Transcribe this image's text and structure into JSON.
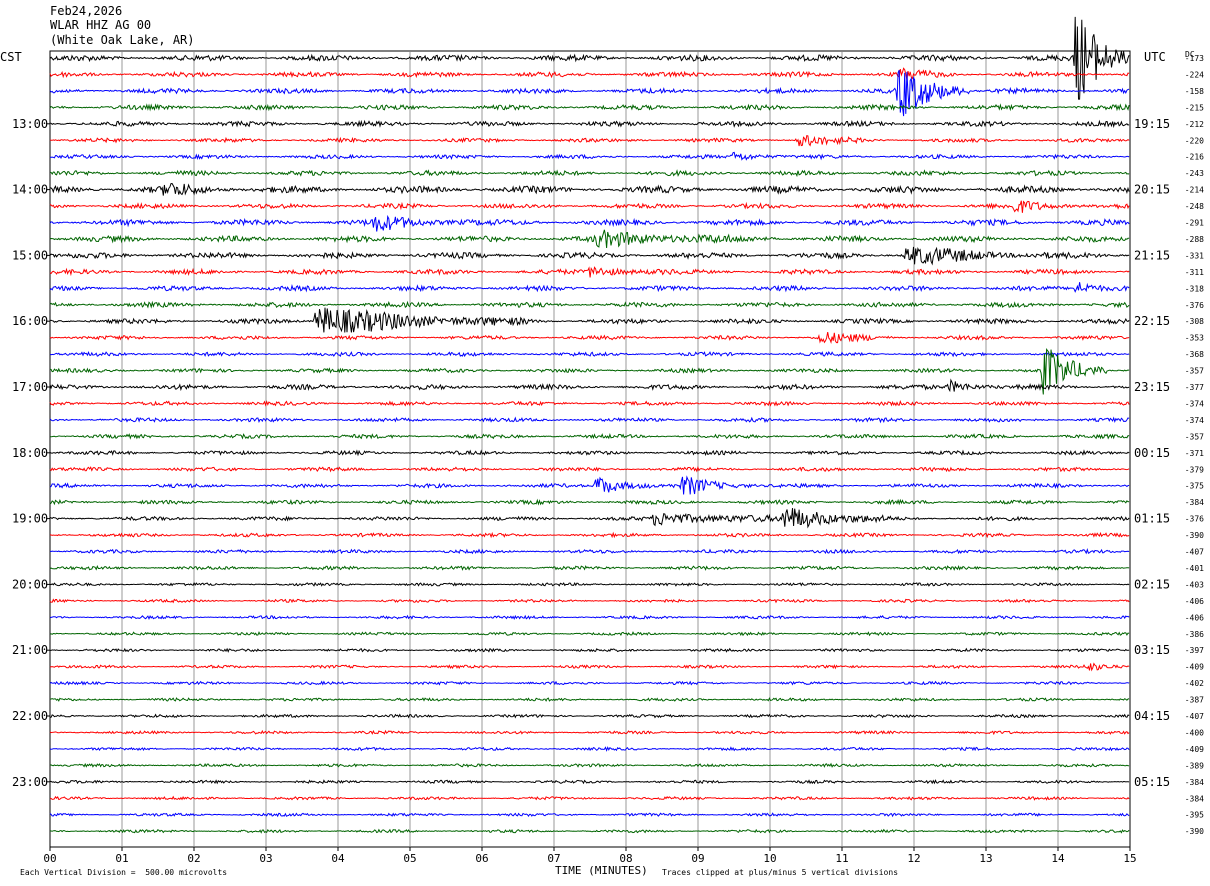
{
  "header": {
    "date": "Feb24,2026",
    "station": "WLAR HHZ AG 00",
    "location": "(White Oak Lake, AR)"
  },
  "left_tz": "CST",
  "right_tz": "UTC",
  "dc_label": "DC",
  "footer": {
    "scale_note": "Each Vertical Division =  500.00 microvolts",
    "xlabel": "TIME (MINUTES)",
    "clip_note": "Traces clipped at plus/minus 5 vertical divisions"
  },
  "colors": {
    "trace_cycle": [
      "#000000",
      "#ff0000",
      "#0000ff",
      "#006400"
    ],
    "grid": "#808080"
  },
  "chart_data": {
    "type": "helicorder",
    "title": "WLAR HHZ AG 00",
    "xlabel": "TIME (MINUTES)",
    "xlim": [
      0,
      15
    ],
    "x_ticks": [
      "00",
      "01",
      "02",
      "03",
      "04",
      "05",
      "06",
      "07",
      "08",
      "09",
      "10",
      "11",
      "12",
      "13",
      "14",
      "15"
    ],
    "minutes_per_line": 15,
    "lines_per_hour": 4,
    "left_time_labels": [
      "13:00",
      "14:00",
      "15:00",
      "16:00",
      "17:00",
      "18:00",
      "19:00",
      "20:00",
      "21:00",
      "22:00",
      "23:00"
    ],
    "right_time_labels": [
      "19:15",
      "20:15",
      "21:15",
      "22:15",
      "23:15",
      "00:15",
      "01:15",
      "02:15",
      "03:15",
      "04:15",
      "05:15"
    ],
    "dc_offsets": [
      -173,
      -224,
      -158,
      -215,
      -212,
      -220,
      -216,
      -243,
      -214,
      -248,
      -291,
      -288,
      -331,
      -311,
      -318,
      -376,
      -308,
      -353,
      -368,
      -357,
      -377,
      -374,
      -374,
      -357,
      -371,
      -379,
      -375,
      -384,
      -376,
      -390,
      -407,
      -401,
      -403,
      -406,
      -406,
      -386,
      -397,
      -409,
      -402,
      -387,
      -407,
      -400,
      -409,
      -389,
      -384,
      -384,
      -395,
      -390
    ],
    "noise_levels": [
      3,
      2.5,
      2.5,
      2.5,
      2.5,
      2,
      2,
      2.5,
      3.5,
      2.5,
      3,
      3,
      3,
      2.5,
      2.5,
      2.5,
      2.5,
      2,
      2,
      2,
      2.5,
      2,
      2,
      2,
      2,
      2,
      2,
      2,
      2,
      1.8,
      1.8,
      1.8,
      1.5,
      1.5,
      1.5,
      1.5,
      1.5,
      1.5,
      1.5,
      1.5,
      1.5,
      1.5,
      1.5,
      1.5,
      1.5,
      1.5,
      1.5,
      1.5
    ],
    "events": [
      {
        "line": 0,
        "minute": 14.25,
        "amplitude": 55,
        "duration": 0.3
      },
      {
        "line": 2,
        "minute": 11.8,
        "amplitude": 28,
        "duration": 0.4
      },
      {
        "line": 1,
        "minute": 11.8,
        "amplitude": 6,
        "duration": 0.3
      },
      {
        "line": 5,
        "minute": 10.4,
        "amplitude": 6,
        "duration": 0.4
      },
      {
        "line": 6,
        "minute": 9.5,
        "amplitude": 5,
        "duration": 0.3
      },
      {
        "line": 8,
        "minute": 1.6,
        "amplitude": 6,
        "duration": 0.4
      },
      {
        "line": 9,
        "minute": 13.4,
        "amplitude": 6,
        "duration": 0.4
      },
      {
        "line": 10,
        "minute": 4.5,
        "amplitude": 7,
        "duration": 0.6
      },
      {
        "line": 11,
        "minute": 7.6,
        "amplitude": 7,
        "duration": 1.0
      },
      {
        "line": 12,
        "minute": 11.9,
        "amplitude": 9,
        "duration": 0.8
      },
      {
        "line": 13,
        "minute": 7.5,
        "amplitude": 5,
        "duration": 0.5
      },
      {
        "line": 14,
        "minute": 14.25,
        "amplitude": 7,
        "duration": 0.3
      },
      {
        "line": 16,
        "minute": 3.7,
        "amplitude": 15,
        "duration": 1.2
      },
      {
        "line": 17,
        "minute": 10.7,
        "amplitude": 6,
        "duration": 0.4
      },
      {
        "line": 19,
        "minute": 13.8,
        "amplitude": 26,
        "duration": 0.35
      },
      {
        "line": 20,
        "minute": 12.5,
        "amplitude": 6,
        "duration": 0.3
      },
      {
        "line": 26,
        "minute": 7.6,
        "amplitude": 11,
        "duration": 0.3
      },
      {
        "line": 26,
        "minute": 8.8,
        "amplitude": 10,
        "duration": 0.4
      },
      {
        "line": 28,
        "minute": 8.4,
        "amplitude": 6,
        "duration": 1.0
      },
      {
        "line": 28,
        "minute": 10.2,
        "amplitude": 12,
        "duration": 0.6
      },
      {
        "line": 37,
        "minute": 14.4,
        "amplitude": 4,
        "duration": 0.3
      }
    ]
  }
}
